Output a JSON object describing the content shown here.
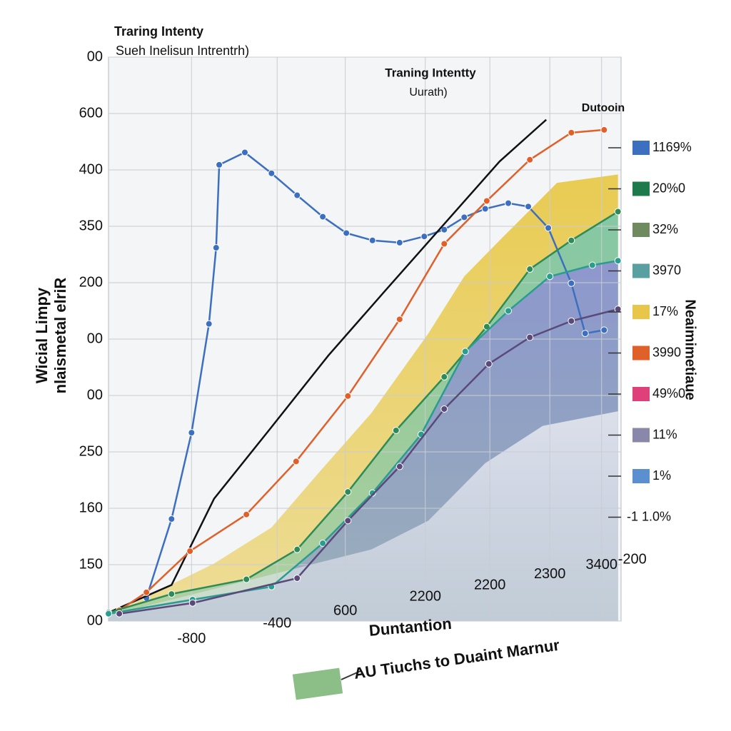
{
  "chart_data": {
    "type": "line",
    "title": "Traring Intenty",
    "subtitle": "Sueh Inelisun Intrentrh)",
    "annotations": [
      "Traning Intentty",
      "Uurath)",
      "Dutooin"
    ],
    "y_label": [
      "Wicial Limpy",
      "nlaismetal elriR"
    ],
    "y2_label": "Neaimimetiaue",
    "x_label": "Duntantion",
    "note": "AU Tiuchs to Duaint Marnur",
    "grid": true,
    "xlim": [
      0,
      10
    ],
    "ylim": [
      0,
      10
    ],
    "yticks": [
      {
        "value": 10,
        "label": "00"
      },
      {
        "value": 9,
        "label": "600"
      },
      {
        "value": 8,
        "label": "400"
      },
      {
        "value": 7,
        "label": "350"
      },
      {
        "value": 6,
        "label": "200"
      },
      {
        "value": 5,
        "label": "00"
      },
      {
        "value": 4,
        "label": "00"
      },
      {
        "value": 3,
        "label": "250"
      },
      {
        "value": 2,
        "label": "160"
      },
      {
        "value": 1,
        "label": "150"
      },
      {
        "value": 0,
        "label": "00"
      }
    ],
    "xticks": [
      {
        "value": 1.62,
        "label": "-800"
      },
      {
        "value": 3.29,
        "label": "-400"
      },
      {
        "value": 4.62,
        "label": "600"
      },
      {
        "value": 6.18,
        "label": "2200"
      },
      {
        "value": 7.44,
        "label": "2200"
      },
      {
        "value": 8.61,
        "label": "2300"
      },
      {
        "value": 9.62,
        "label": "3400"
      },
      {
        "value": 10.22,
        "label": "-200"
      }
    ],
    "areas": [
      {
        "color": "#e8c94a",
        "x": [
          0,
          2.06,
          3.18,
          4.15,
          5.13,
          6.24,
          6.94,
          7.63,
          8.75,
          9.94
        ],
        "values": [
          0.1,
          1.02,
          1.66,
          2.68,
          3.69,
          5.1,
          6.11,
          6.75,
          7.77,
          7.92
        ]
      },
      {
        "color": "#7fc8a9",
        "x": [
          0,
          1.23,
          2.69,
          3.68,
          4.67,
          5.61,
          6.55,
          7.38,
          8.22,
          9.03,
          9.94
        ],
        "values": [
          0.15,
          0.48,
          0.74,
          1.27,
          2.29,
          3.38,
          4.33,
          5.22,
          6.24,
          6.75,
          7.26
        ]
      },
      {
        "color": "#8e95cf",
        "x": [
          0,
          1.64,
          3.18,
          4.18,
          5.15,
          6.1,
          6.96,
          7.8,
          8.61,
          9.44,
          9.94
        ],
        "values": [
          0.13,
          0.38,
          0.61,
          1.38,
          2.27,
          3.31,
          4.78,
          5.5,
          6.11,
          6.31,
          6.39
        ]
      },
      {
        "color": "#dfe3ec",
        "x": [
          0,
          5.13,
          6.24,
          7.35,
          8.47,
          9.94
        ],
        "values": [
          0.1,
          1.27,
          1.78,
          2.8,
          3.46,
          3.72
        ]
      }
    ],
    "series": [
      {
        "color": "#3d6fc1",
        "markers": true,
        "x": [
          0.74,
          1.23,
          1.62,
          1.96,
          2.1,
          2.16,
          2.66,
          3.18,
          3.68,
          4.18,
          4.64,
          5.15,
          5.68,
          6.16,
          6.55,
          6.94,
          7.35,
          7.8,
          8.19,
          8.58,
          9.03,
          9.3,
          9.67
        ],
        "values": [
          0.41,
          1.81,
          3.34,
          5.27,
          6.62,
          8.09,
          8.31,
          7.94,
          7.55,
          7.17,
          6.88,
          6.75,
          6.71,
          6.82,
          6.94,
          7.16,
          7.31,
          7.41,
          7.35,
          6.97,
          5.99,
          5.1,
          5.16
        ]
      },
      {
        "color": "#111111",
        "markers": false,
        "x": [
          0,
          1.23,
          2.06,
          3.18,
          4.29,
          5.4,
          6.52,
          7.63,
          8.54
        ],
        "values": [
          0.15,
          0.64,
          2.17,
          3.44,
          4.71,
          5.86,
          7.01,
          8.15,
          8.89
        ]
      },
      {
        "color": "#e0602a",
        "markers": true,
        "x": [
          0.21,
          0.74,
          1.59,
          2.69,
          3.66,
          4.67,
          5.68,
          6.55,
          7.38,
          8.22,
          9.03,
          9.67
        ],
        "values": [
          0.19,
          0.51,
          1.24,
          1.89,
          2.83,
          3.99,
          5.35,
          6.69,
          7.45,
          8.18,
          8.66,
          8.71
        ]
      },
      {
        "color": "#2e8b57",
        "markers": true,
        "x": [
          0,
          1.23,
          2.69,
          3.68,
          4.67,
          5.61,
          6.55,
          7.38,
          8.22,
          9.03,
          9.94
        ],
        "values": [
          0.15,
          0.48,
          0.74,
          1.27,
          2.29,
          3.38,
          4.33,
          5.22,
          6.24,
          6.75,
          7.26
        ]
      },
      {
        "color": "#2a9d8f",
        "markers": true,
        "x": [
          0,
          1.64,
          3.18,
          4.18,
          5.15,
          6.1,
          6.96,
          7.8,
          8.61,
          9.44,
          9.94
        ],
        "values": [
          0.13,
          0.38,
          0.61,
          1.38,
          2.27,
          3.31,
          4.78,
          5.5,
          6.11,
          6.31,
          6.39
        ]
      },
      {
        "color": "#5a4a7a",
        "markers": true,
        "x": [
          0.21,
          1.64,
          3.68,
          4.67,
          5.68,
          6.55,
          7.42,
          8.22,
          9.03,
          9.94
        ],
        "values": [
          0.13,
          0.32,
          0.76,
          1.78,
          2.74,
          3.76,
          4.56,
          5.03,
          5.32,
          5.53
        ]
      }
    ],
    "legend": [
      {
        "label": "1169%",
        "color": "#3d6fc1"
      },
      {
        "label": "20%0",
        "color": "#1e7a4a"
      },
      {
        "label": "32%",
        "color": "#6f8a5e"
      },
      {
        "label": "3970",
        "color": "#5aa0a0"
      },
      {
        "label": "17%",
        "color": "#e7c64a"
      },
      {
        "label": "3990",
        "color": "#e0602a"
      },
      {
        "label": "49%0",
        "color": "#e0407a"
      },
      {
        "label": "11%",
        "color": "#8a88a8"
      },
      {
        "label": "1%",
        "color": "#5b8fd0"
      },
      {
        "label": "-1 1.0%"
      }
    ]
  }
}
